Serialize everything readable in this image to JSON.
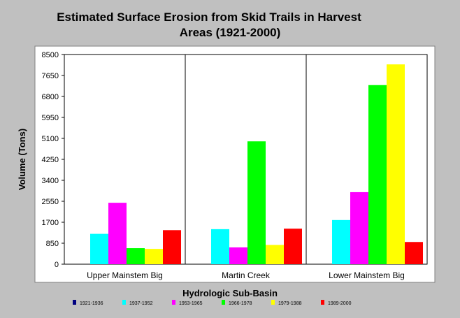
{
  "chart_data": {
    "type": "bar",
    "title_lines": [
      "Estimated Surface Erosion from Skid Trails in Harvest",
      "Areas (1921-2000)"
    ],
    "xlabel": "Hydrologic Sub-Basin",
    "ylabel": "Volume (Tons)",
    "ylim": [
      0,
      8500
    ],
    "yticks": [
      "0",
      "850",
      "1700",
      "2550",
      "3400",
      "4250",
      "5100",
      "5950",
      "6800",
      "7650",
      "8500"
    ],
    "categories": [
      "Upper Mainstem Big",
      "Martin Creek",
      "Lower Mainstem Big"
    ],
    "series": [
      {
        "name": "1921-1936",
        "color": "#000080",
        "values": [
          0,
          0,
          0
        ]
      },
      {
        "name": "1937-1952",
        "color": "#00ffff",
        "values": [
          1230,
          1420,
          1790
        ]
      },
      {
        "name": "1953-1965",
        "color": "#ff00ff",
        "values": [
          2490,
          680,
          2920
        ]
      },
      {
        "name": "1966-1978",
        "color": "#00ff00",
        "values": [
          650,
          4980,
          7260
        ]
      },
      {
        "name": "1979-1988",
        "color": "#ffff00",
        "values": [
          620,
          780,
          8100
        ]
      },
      {
        "name": "1989-2000",
        "color": "#ff0000",
        "values": [
          1380,
          1440,
          900
        ]
      }
    ],
    "grid": false,
    "legend_position": "bottom"
  }
}
